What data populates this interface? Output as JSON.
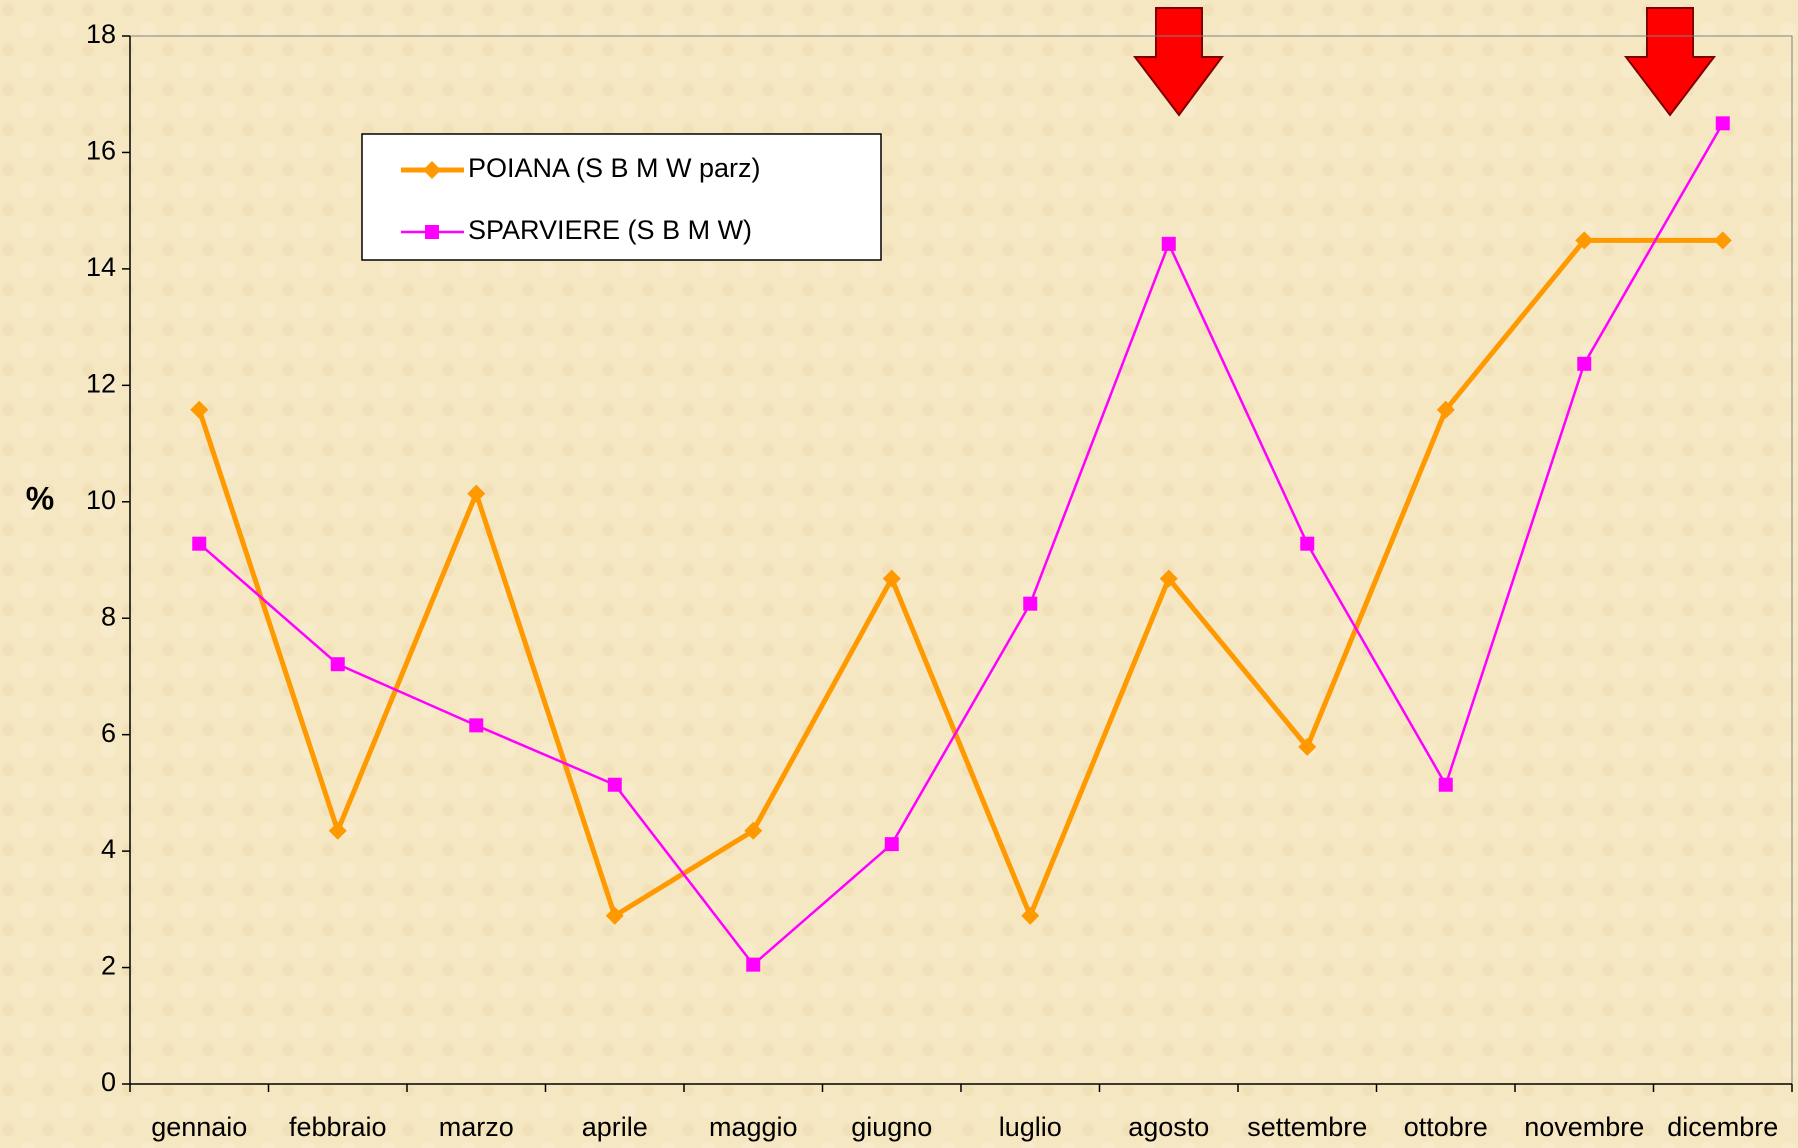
{
  "chart_data": {
    "type": "line",
    "categories": [
      "gennaio",
      "febbraio",
      "marzo",
      "aprile",
      "maggio",
      "giugno",
      "luglio",
      "agosto",
      "settembre",
      "ottobre",
      "novembre",
      "dicembre"
    ],
    "series": [
      {
        "name": "POIANA (S B M W parz)",
        "color": "#ff9900",
        "values": [
          11.58,
          4.35,
          10.14,
          2.89,
          4.35,
          8.68,
          2.89,
          8.68,
          5.79,
          11.58,
          14.49,
          14.49
        ]
      },
      {
        "name": "SPARVIERE (S B M W)",
        "color": "#ff00ff",
        "values": [
          9.28,
          7.21,
          6.16,
          5.14,
          2.05,
          4.12,
          8.25,
          14.43,
          9.28,
          5.14,
          12.37,
          16.5
        ]
      }
    ],
    "y_label": "%",
    "ylim": [
      0,
      18
    ],
    "yticks": [
      0,
      2,
      4,
      6,
      8,
      10,
      12,
      14,
      16,
      18
    ],
    "legend": "upper left"
  }
}
